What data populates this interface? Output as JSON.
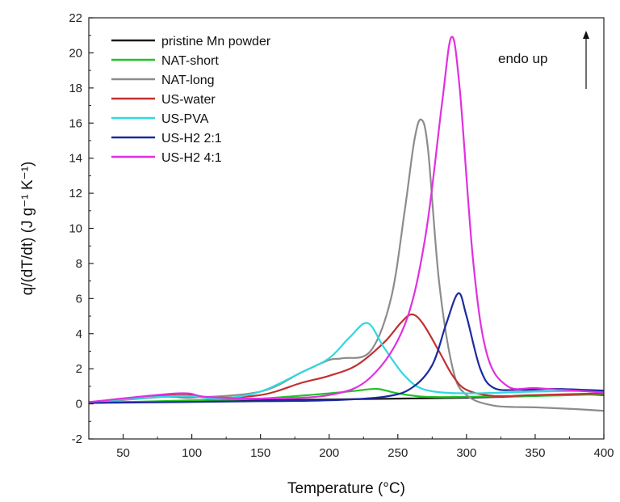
{
  "chart_data": {
    "type": "line",
    "title": "",
    "xlabel": "Temperature (°C)",
    "ylabel": "q/(dT/dt) (J g⁻¹ K⁻¹)",
    "xlim": [
      25,
      400
    ],
    "ylim": [
      -2,
      22
    ],
    "xticks": [
      50,
      100,
      150,
      200,
      250,
      300,
      350,
      400
    ],
    "yticks": [
      -2,
      0,
      2,
      4,
      6,
      8,
      10,
      12,
      14,
      16,
      18,
      20,
      22
    ],
    "grid": false,
    "legend_position": "top-left",
    "annotation": "endo up",
    "series": [
      {
        "name": "pristine Mn powder",
        "color": "#1a1a1a",
        "points": [
          [
            25,
            0.05
          ],
          [
            50,
            0.1
          ],
          [
            100,
            0.15
          ],
          [
            150,
            0.2
          ],
          [
            200,
            0.25
          ],
          [
            250,
            0.3
          ],
          [
            300,
            0.35
          ],
          [
            350,
            0.45
          ],
          [
            380,
            0.55
          ],
          [
            400,
            0.5
          ]
        ]
      },
      {
        "name": "NAT-short",
        "color": "#22c222",
        "points": [
          [
            25,
            0.05
          ],
          [
            100,
            0.2
          ],
          [
            150,
            0.3
          ],
          [
            200,
            0.6
          ],
          [
            220,
            0.75
          ],
          [
            235,
            0.85
          ],
          [
            250,
            0.6
          ],
          [
            270,
            0.4
          ],
          [
            300,
            0.4
          ],
          [
            350,
            0.45
          ],
          [
            400,
            0.55
          ]
        ]
      },
      {
        "name": "NAT-long",
        "color": "#8c8c8c",
        "points": [
          [
            25,
            0.05
          ],
          [
            80,
            0.4
          ],
          [
            100,
            0.35
          ],
          [
            150,
            0.7
          ],
          [
            180,
            1.8
          ],
          [
            200,
            2.5
          ],
          [
            210,
            2.6
          ],
          [
            230,
            3.0
          ],
          [
            245,
            6.0
          ],
          [
            255,
            11.0
          ],
          [
            262,
            15.0
          ],
          [
            267,
            16.2
          ],
          [
            272,
            14.5
          ],
          [
            280,
            7.0
          ],
          [
            290,
            2.0
          ],
          [
            300,
            0.5
          ],
          [
            320,
            -0.1
          ],
          [
            350,
            -0.2
          ],
          [
            380,
            -0.3
          ],
          [
            400,
            -0.4
          ]
        ]
      },
      {
        "name": "US-water",
        "color": "#c23030",
        "points": [
          [
            25,
            0.05
          ],
          [
            90,
            0.55
          ],
          [
            110,
            0.35
          ],
          [
            150,
            0.5
          ],
          [
            180,
            1.2
          ],
          [
            200,
            1.6
          ],
          [
            220,
            2.2
          ],
          [
            240,
            3.5
          ],
          [
            252,
            4.6
          ],
          [
            260,
            5.1
          ],
          [
            268,
            4.6
          ],
          [
            280,
            3.0
          ],
          [
            290,
            1.6
          ],
          [
            300,
            0.8
          ],
          [
            320,
            0.45
          ],
          [
            350,
            0.5
          ],
          [
            400,
            0.6
          ]
        ]
      },
      {
        "name": "US-PVA",
        "color": "#30d8e0",
        "points": [
          [
            25,
            0.1
          ],
          [
            90,
            0.45
          ],
          [
            120,
            0.3
          ],
          [
            150,
            0.7
          ],
          [
            180,
            1.8
          ],
          [
            200,
            2.6
          ],
          [
            215,
            3.8
          ],
          [
            228,
            4.6
          ],
          [
            240,
            3.2
          ],
          [
            255,
            1.6
          ],
          [
            270,
            0.8
          ],
          [
            300,
            0.6
          ],
          [
            350,
            0.7
          ],
          [
            400,
            0.75
          ]
        ]
      },
      {
        "name": "US-H2 2:1",
        "color": "#1c2aa0",
        "points": [
          [
            25,
            0.05
          ],
          [
            150,
            0.15
          ],
          [
            200,
            0.2
          ],
          [
            240,
            0.4
          ],
          [
            260,
            0.9
          ],
          [
            275,
            2.2
          ],
          [
            285,
            4.5
          ],
          [
            294,
            6.3
          ],
          [
            300,
            5.0
          ],
          [
            310,
            2.0
          ],
          [
            320,
            0.9
          ],
          [
            340,
            0.8
          ],
          [
            365,
            0.85
          ],
          [
            400,
            0.75
          ]
        ]
      },
      {
        "name": "US-H2 4:1",
        "color": "#e030e0",
        "points": [
          [
            25,
            0.1
          ],
          [
            90,
            0.6
          ],
          [
            110,
            0.4
          ],
          [
            150,
            0.3
          ],
          [
            200,
            0.5
          ],
          [
            230,
            1.5
          ],
          [
            255,
            4.5
          ],
          [
            270,
            9.5
          ],
          [
            282,
            17.0
          ],
          [
            289,
            20.9
          ],
          [
            295,
            18.0
          ],
          [
            305,
            8.0
          ],
          [
            315,
            2.8
          ],
          [
            330,
            1.0
          ],
          [
            350,
            0.9
          ],
          [
            370,
            0.8
          ],
          [
            400,
            0.65
          ]
        ]
      }
    ]
  }
}
